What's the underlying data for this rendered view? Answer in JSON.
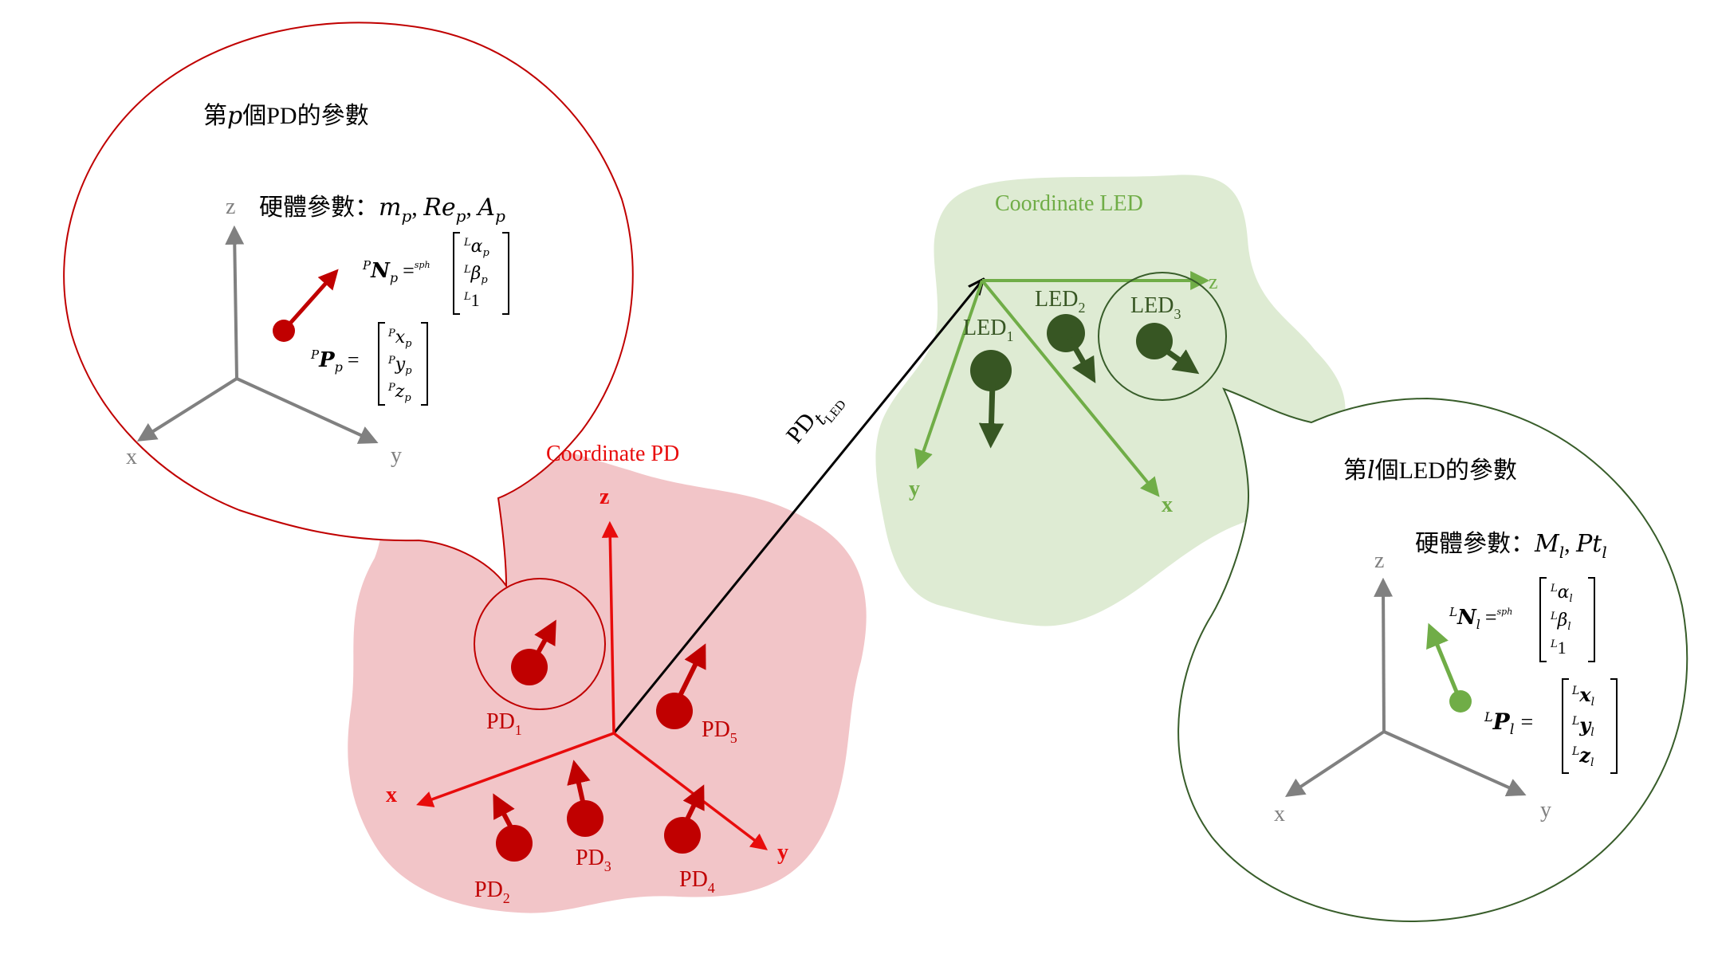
{
  "colors": {
    "pd_region_fill": "#f2c5c8",
    "led_region_fill": "#deebd3",
    "pd_red": "#e80c0c",
    "pd_dark_red": "#c00000",
    "pd_bubble_stroke": "#c00000",
    "led_green": "#70ad47",
    "led_dark_green": "#375623",
    "led_bubble_stroke": "#385d2a",
    "axis_gray": "#808080",
    "black": "#000000"
  },
  "pd_frame": {
    "title": "Coordinate PD",
    "axis_z": "z",
    "axis_x": "x",
    "axis_y": "y",
    "detectors": [
      "PD",
      "PD",
      "PD",
      "PD",
      "PD"
    ],
    "detector_subscripts": [
      "1",
      "2",
      "3",
      "4",
      "5"
    ]
  },
  "led_frame": {
    "title": "Coordinate LED",
    "axis_z": "z",
    "axis_x": "x",
    "axis_y": "y",
    "leds": [
      "LED",
      "LED",
      "LED"
    ],
    "led_subscripts": [
      "1",
      "2",
      "3"
    ]
  },
  "transform": {
    "label_main": "PD",
    "label_sub": "t",
    "label_subsub": "LED"
  },
  "pd_bubble": {
    "title_prefix": "第",
    "title_var": "p",
    "title_suffix": "個PD的參數",
    "hardware_label": "硬體參數：",
    "hardware_vars": "m",
    "hw_p1": "p",
    "hw_sep1": ", ",
    "hw_re": "Re",
    "hw_p2": "p",
    "hw_sep2": ", ",
    "hw_a": "A",
    "hw_p3": "p",
    "normal_sup": "P",
    "normal_sym": "N",
    "normal_sub": "p",
    "eq_sign": "=",
    "sph": "sph",
    "normal_vector": [
      "α",
      "β",
      "1"
    ],
    "normal_vector_sub": [
      "p",
      "p",
      ""
    ],
    "vector_sup": "L",
    "pos_sup": "P",
    "pos_sym": "P",
    "pos_sub": "p",
    "pos_vector": [
      "x",
      "y",
      "z"
    ],
    "pos_vector_sub": [
      "p",
      "p",
      "p"
    ],
    "axis_x": "x",
    "axis_y": "y",
    "axis_z": "z"
  },
  "led_bubble": {
    "title_prefix": "第",
    "title_var": "l",
    "title_suffix": "個LED的參數",
    "hardware_label": "硬體參數：",
    "hw_m": "M",
    "hw_l1": "l",
    "hw_sep": ", ",
    "hw_pt": "Pt",
    "hw_l2": "l",
    "normal_sup": "L",
    "normal_sym": "N",
    "normal_sub": "l",
    "eq_sign": "=",
    "sph": "sph",
    "normal_vector": [
      "α",
      "β",
      "1"
    ],
    "normal_vector_sub": [
      "l",
      "l",
      ""
    ],
    "vector_sup": "L",
    "pos_sup": "L",
    "pos_sym": "P",
    "pos_sub": "l",
    "pos_vector": [
      "x",
      "y",
      "z"
    ],
    "pos_vector_sub": [
      "l",
      "l",
      "l"
    ],
    "axis_x": "x",
    "axis_y": "y",
    "axis_z": "z"
  }
}
